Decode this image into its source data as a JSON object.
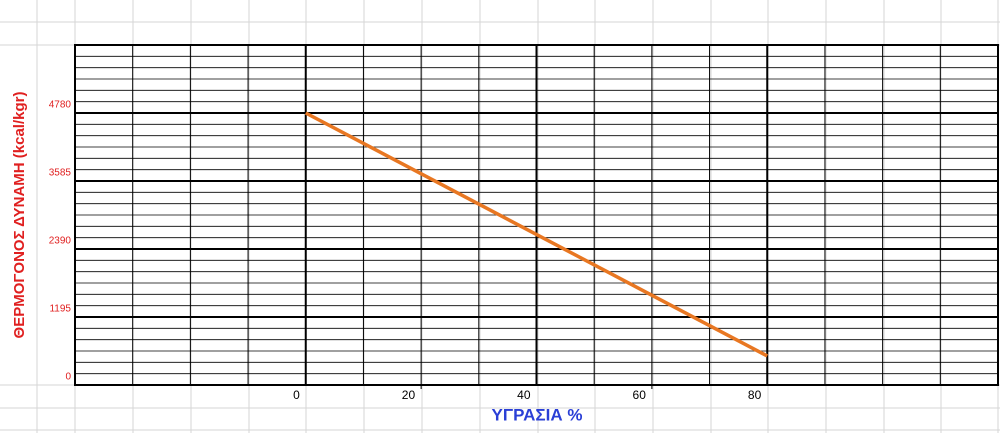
{
  "chart_data": {
    "type": "line",
    "y_axis_label": "ΘΕΡΜΟΓΟΝΟΣ ΔΥΝΑΜΗ  (kcal/kgr)",
    "x_axis_label": "ΥΓΡΑΣΙΑ %",
    "x": [
      0,
      80
    ],
    "series": [
      {
        "color": "#e87722",
        "values": [
          4780,
          510
        ]
      }
    ],
    "xlim": [
      -40,
      120
    ],
    "xticks": [
      0,
      20,
      40,
      60,
      80
    ],
    "ylim": [
      0,
      5975
    ],
    "yticks": [
      0,
      1195,
      2390,
      3585,
      4780
    ],
    "grid": true
  }
}
